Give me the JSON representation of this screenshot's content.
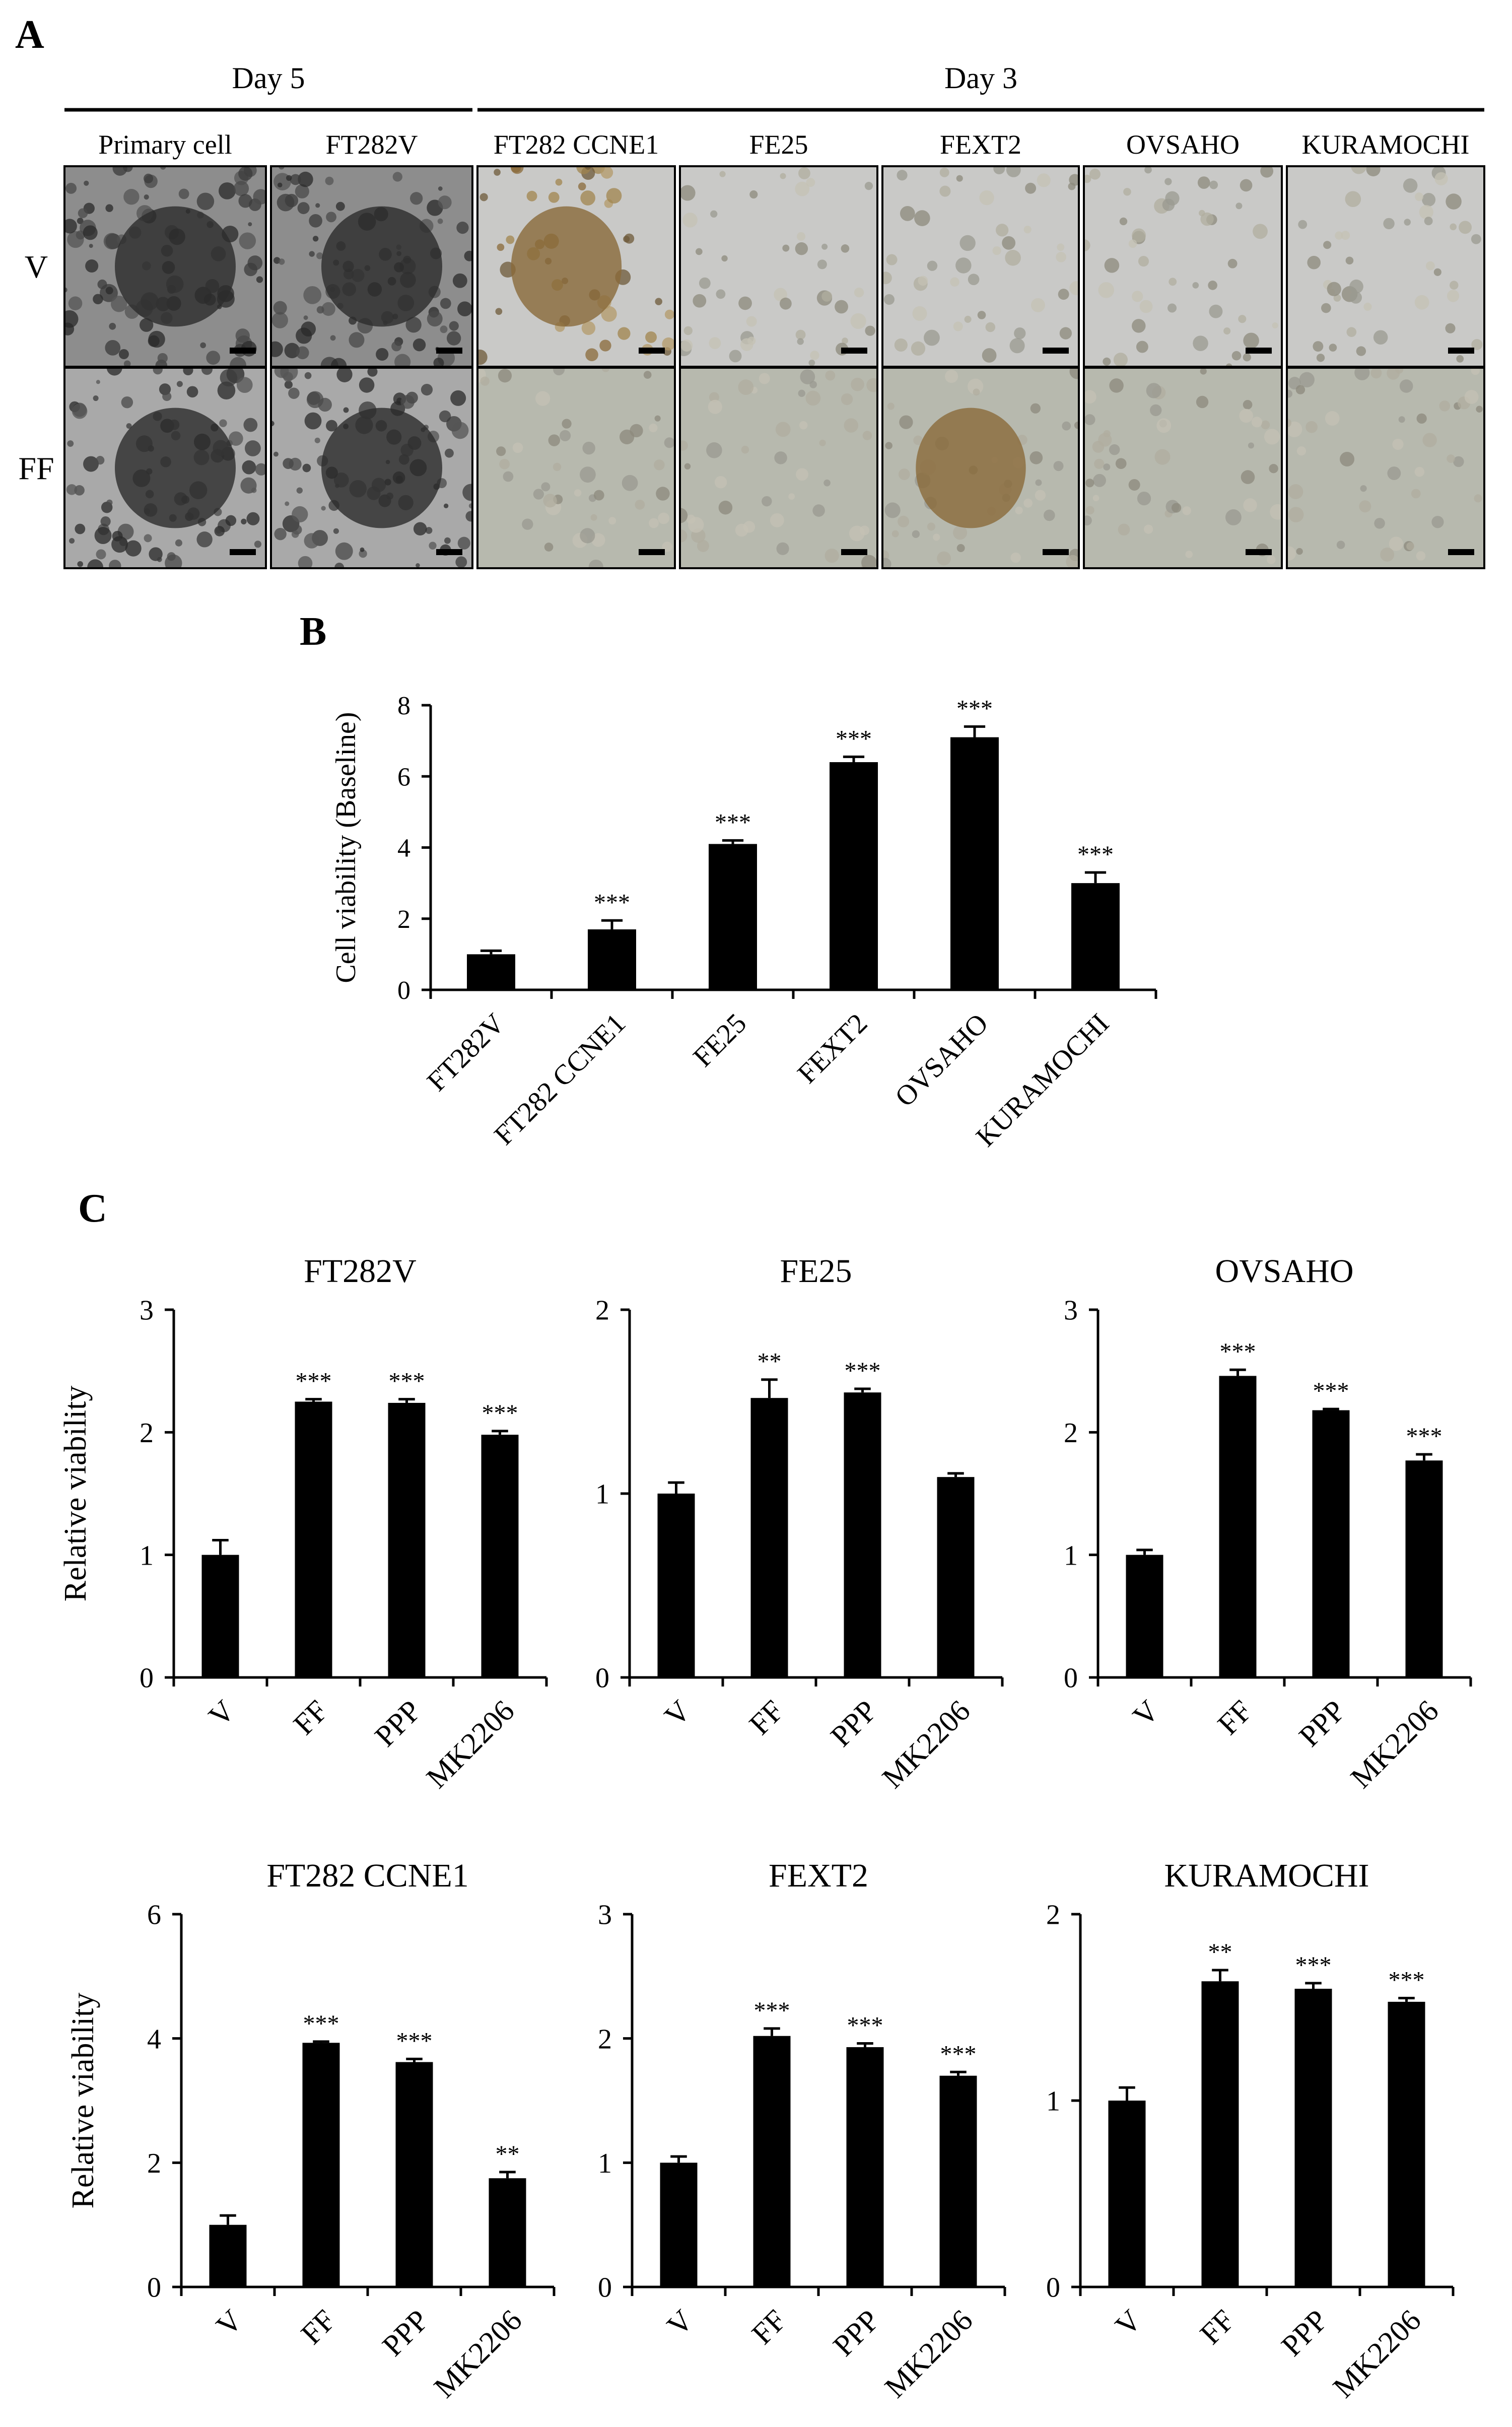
{
  "panel_labels": {
    "a": "A",
    "b": "B",
    "c": "C"
  },
  "panel_a": {
    "day5_label": "Day 5",
    "day3_label": "Day 3",
    "columns": [
      "Primary cell",
      "FT282V",
      "FT282 CCNE1",
      "FE25",
      "FEXT2",
      "OVSAHO",
      "KURAMOCHI"
    ],
    "rows": [
      "V",
      "FF"
    ],
    "day5_columns": 2
  },
  "chart_data": [
    {
      "type": "bar",
      "panel": "B",
      "title": "",
      "ylabel": "Cell viability (Baseline)",
      "xlabel": "",
      "ylim": [
        0,
        8
      ],
      "yticks": [
        0,
        2,
        4,
        6,
        8
      ],
      "categories": [
        "FT282V",
        "FT282 CCNE1",
        "FE25",
        "FEXT2",
        "OVSAHO",
        "KURAMOCHI"
      ],
      "values": [
        1.0,
        1.7,
        4.1,
        6.4,
        7.1,
        3.0
      ],
      "errors": [
        0.1,
        0.25,
        0.1,
        0.15,
        0.3,
        0.3
      ],
      "significance": [
        "",
        "***",
        "***",
        "***",
        "***",
        "***"
      ],
      "grid": false
    },
    {
      "type": "bar",
      "panel": "C",
      "title": "FT282V",
      "ylabel": "Relative viability",
      "ylim": [
        0,
        3
      ],
      "yticks": [
        0,
        1,
        2,
        3
      ],
      "categories": [
        "V",
        "FF",
        "PPP",
        "MK2206"
      ],
      "values": [
        1.0,
        2.25,
        2.24,
        1.98
      ],
      "errors": [
        0.12,
        0.02,
        0.03,
        0.03
      ],
      "significance": [
        "",
        "***",
        "***",
        "***"
      ]
    },
    {
      "type": "bar",
      "panel": "C",
      "title": "FE25",
      "ylabel": "",
      "ylim": [
        0,
        2
      ],
      "yticks": [
        0,
        1,
        2
      ],
      "categories": [
        "V",
        "FF",
        "PPP",
        "MK2206"
      ],
      "values": [
        1.0,
        1.52,
        1.55,
        1.09
      ],
      "errors": [
        0.06,
        0.1,
        0.02,
        0.02
      ],
      "significance": [
        "",
        "**",
        "***",
        ""
      ]
    },
    {
      "type": "bar",
      "panel": "C",
      "title": "OVSAHO",
      "ylabel": "",
      "ylim": [
        0,
        3
      ],
      "yticks": [
        0,
        1,
        2,
        3
      ],
      "categories": [
        "V",
        "FF",
        "PPP",
        "MK2206"
      ],
      "values": [
        1.0,
        2.46,
        2.18,
        1.77
      ],
      "errors": [
        0.04,
        0.05,
        0.01,
        0.05
      ],
      "significance": [
        "",
        "***",
        "***",
        "***"
      ]
    },
    {
      "type": "bar",
      "panel": "C",
      "title": "FT282  CCNE1",
      "ylabel": "Relative viability",
      "ylim": [
        0,
        6
      ],
      "yticks": [
        0,
        2,
        4,
        6
      ],
      "categories": [
        "V",
        "FF",
        "PPP",
        "MK2206"
      ],
      "values": [
        1.0,
        3.93,
        3.62,
        1.75
      ],
      "errors": [
        0.15,
        0.02,
        0.05,
        0.1
      ],
      "significance": [
        "",
        "***",
        "***",
        "**"
      ]
    },
    {
      "type": "bar",
      "panel": "C",
      "title": "FEXT2",
      "ylabel": "",
      "ylim": [
        0,
        3
      ],
      "yticks": [
        0,
        1,
        2,
        3
      ],
      "categories": [
        "V",
        "FF",
        "PPP",
        "MK2206"
      ],
      "values": [
        1.0,
        2.02,
        1.93,
        1.7
      ],
      "errors": [
        0.05,
        0.06,
        0.03,
        0.03
      ],
      "significance": [
        "",
        "***",
        "***",
        "***"
      ]
    },
    {
      "type": "bar",
      "panel": "C",
      "title": "KURAMOCHI",
      "ylabel": "",
      "ylim": [
        0,
        2
      ],
      "yticks": [
        0,
        1,
        2
      ],
      "categories": [
        "V",
        "FF",
        "PPP",
        "MK2206"
      ],
      "values": [
        1.0,
        1.64,
        1.6,
        1.53
      ],
      "errors": [
        0.07,
        0.06,
        0.03,
        0.02
      ],
      "significance": [
        "",
        "**",
        "***",
        "***"
      ]
    }
  ],
  "colors": {
    "bar": "#000000",
    "axis": "#000000",
    "text": "#000000"
  }
}
